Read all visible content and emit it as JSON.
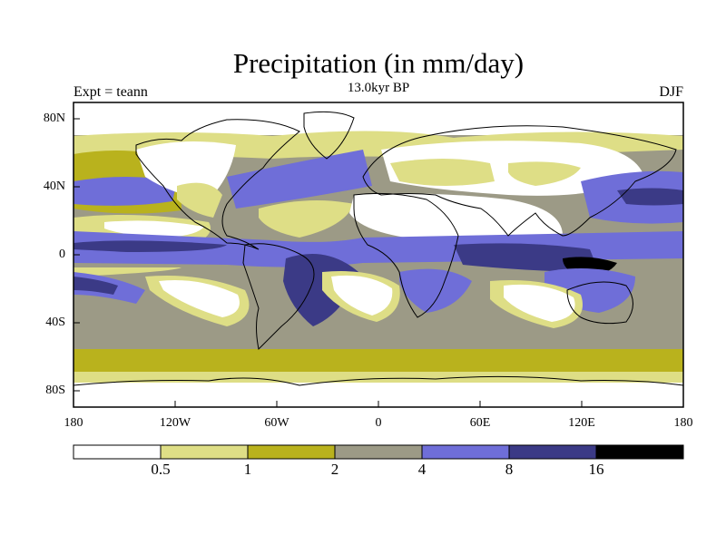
{
  "header": {
    "title": "Precipitation (in mm/day)",
    "subtitle": "13.0kyr BP",
    "left_label": "Expt = teann",
    "right_label": "DJF"
  },
  "axes": {
    "lat_ticks": [
      "80N",
      "40N",
      "0",
      "40S",
      "80S"
    ],
    "lon_ticks": [
      "180",
      "120W",
      "60W",
      "0",
      "60E",
      "120E",
      "180"
    ]
  },
  "colorbar": {
    "colors": [
      "#ffffff",
      "#dede86",
      "#b9b21d",
      "#9c9a86",
      "#6f6ed8",
      "#3b3a86",
      "#000000"
    ],
    "labels": [
      "0.5",
      "1",
      "2",
      "4",
      "8",
      "16"
    ]
  },
  "colors": {
    "ocean_base": "#9c9a86",
    "coast": "#000000",
    "frame": "#000000"
  }
}
